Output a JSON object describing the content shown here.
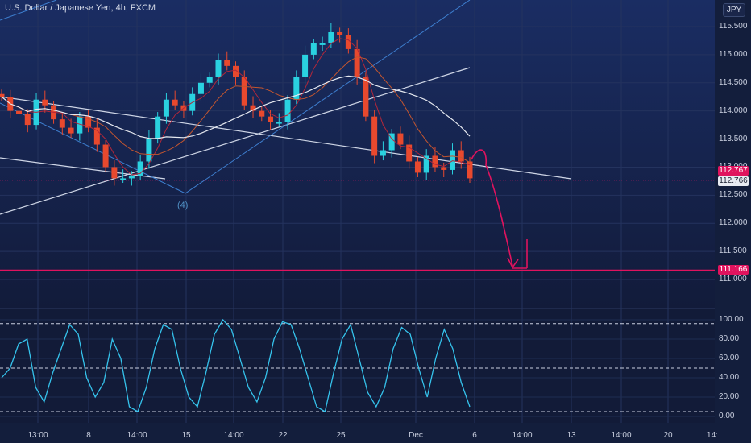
{
  "header": {
    "title": "U.S. Dollar / Japanese Yen, 4h, FXCM",
    "currency_badge": "JPY"
  },
  "price_axis_labels": [
    "115.500",
    "115.000",
    "114.500",
    "114.000",
    "113.500",
    "113.000",
    "112.500",
    "112.000",
    "111.500",
    "111.000"
  ],
  "price_tags": {
    "current_high": "112.767",
    "current": "112.766",
    "target": "111.166"
  },
  "osc_axis_labels": [
    "100.00",
    "80.00",
    "60.00",
    "40.00",
    "20.00",
    "0.00"
  ],
  "time_labels": [
    "13:00",
    "8",
    "14:00",
    "15",
    "14:00",
    "22",
    "25",
    "Dec",
    "6",
    "14:00",
    "13",
    "14:00",
    "20",
    "14:"
  ],
  "annotation_wave": "(4)",
  "colors": {
    "bg": "#131e3c",
    "up": "#2ad1e0",
    "down": "#e8492e",
    "target_line": "#e0135e",
    "oscillator": "#35c3ec"
  },
  "chart_data": {
    "type": "candlestick",
    "title": "U.S. Dollar / Japanese Yen, 4h, FXCM",
    "ylim": [
      110.8,
      115.9
    ],
    "levels": [
      112.766,
      111.166
    ],
    "candles_approx_close": [
      114.25,
      114.0,
      113.95,
      113.75,
      114.2,
      114.1,
      113.85,
      113.7,
      113.6,
      113.9,
      113.7,
      113.4,
      113.0,
      112.8,
      112.8,
      112.85,
      113.1,
      113.5,
      113.9,
      114.2,
      114.1,
      114.0,
      114.3,
      114.5,
      114.6,
      114.9,
      114.8,
      114.6,
      114.1,
      114.0,
      113.9,
      113.8,
      113.8,
      114.2,
      114.6,
      115.0,
      115.2,
      115.2,
      115.4,
      115.35,
      115.1,
      114.6,
      113.9,
      113.2,
      113.3,
      113.6,
      113.4,
      113.1,
      112.9,
      113.2,
      113.0,
      112.95,
      113.3,
      113.1,
      112.8
    ],
    "oscillator": {
      "ylim": [
        0,
        100
      ],
      "levels": [
        96,
        50,
        5
      ]
    }
  }
}
